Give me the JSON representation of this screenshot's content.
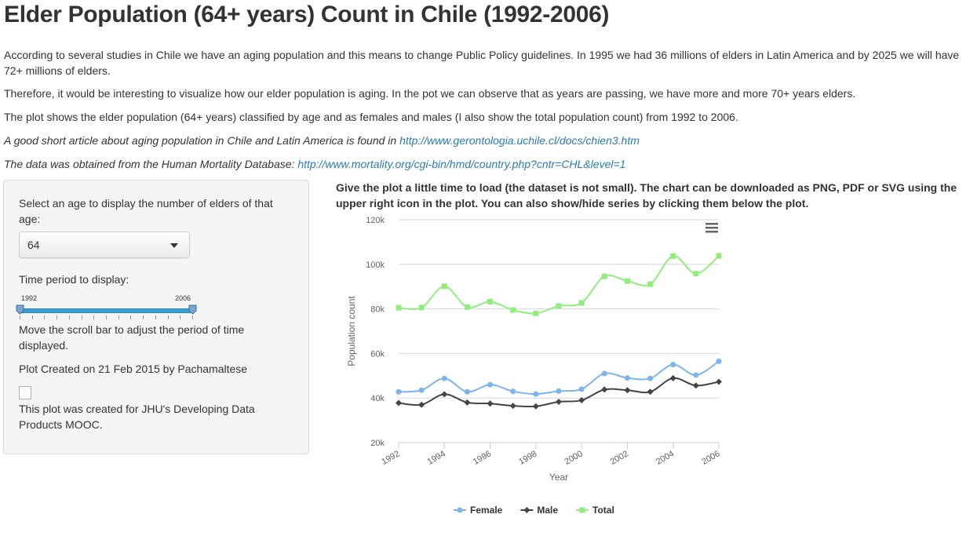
{
  "page": {
    "title": "Elder Population (64+ years) Count in Chile (1992-2006)",
    "paragraphs": {
      "p1": "According to several studies in Chile we have an aging population and this means to change Public Policy guidelines. In 1995 we had 36 millions of elders in Latin America and by 2025 we will have 72+ millions of elders.",
      "p2": "Therefore, it would be interesting to visualize how our elder population is aging. In the pot we can observe that as years are passing, we have more and more 70+ years elders.",
      "p3": "The plot shows the elder population (64+ years) classified by age and as females and males (I also show the total population count) from 1992 to 2006.",
      "p4_text": "A good short article about aging population in Chile and Latin America is found in ",
      "p4_link": "http://www.gerontologia.uchile.cl/docs/chien3.htm",
      "p5_text": "The data was obtained from the Human Mortality Database: ",
      "p5_link": "http://www.mortality.org/cgi-bin/hmd/country.php?cntr=CHL&level=1"
    }
  },
  "sidebar": {
    "age_label": "Select an age to display the number of elders of that age:",
    "age_selected": "64",
    "period_label": "Time period to display:",
    "slider": {
      "min_label": "1992",
      "max_label": "2006",
      "min": 1992,
      "max": 2006,
      "from": 1992,
      "to": 2006
    },
    "scroll_hint": "Move the scroll bar to adjust the period of time displayed.",
    "created": "Plot Created on 21 Feb 2015 by Pachamaltese",
    "jhu": "This plot was created for JHU's Developing Data Products MOOC."
  },
  "chart_note": "Give the plot a little time to load (the dataset is not small). The chart can be downloaded as PNG, PDF or SVG using the upper right icon in the plot. You can also show/hide series by clicking them below the plot.",
  "chart_data": {
    "type": "line",
    "xlabel": "Year",
    "ylabel": "Population count",
    "x": [
      1992,
      1993,
      1994,
      1995,
      1996,
      1997,
      1998,
      1999,
      2000,
      2001,
      2002,
      2003,
      2004,
      2005,
      2006
    ],
    "x_tick_labels": [
      "1992",
      "1994",
      "1996",
      "1998",
      "2000",
      "2002",
      "2004",
      "2006"
    ],
    "x_tick_values": [
      1992,
      1994,
      1996,
      1998,
      2000,
      2002,
      2004,
      2006
    ],
    "y_tick_labels": [
      "20k",
      "40k",
      "60k",
      "80k",
      "100k",
      "120k"
    ],
    "y_tick_values": [
      20000,
      40000,
      60000,
      80000,
      100000,
      120000
    ],
    "ylim": [
      20000,
      120000
    ],
    "grid": true,
    "legend_position": "bottom",
    "series": [
      {
        "name": "Female",
        "color": "#7cb5ec",
        "marker": "circle",
        "values": [
          42800,
          43500,
          48800,
          42800,
          46000,
          43000,
          41800,
          43100,
          44000,
          51000,
          49000,
          48800,
          55000,
          50300,
          56500
        ]
      },
      {
        "name": "Male",
        "color": "#434348",
        "marker": "diamond",
        "values": [
          37800,
          37000,
          41700,
          38000,
          37500,
          36500,
          36300,
          38300,
          39000,
          43800,
          43500,
          42800,
          48900,
          45600,
          47300
        ]
      },
      {
        "name": "Total",
        "color": "#90ed7d",
        "marker": "square",
        "values": [
          80500,
          80600,
          90100,
          80800,
          83200,
          79500,
          78000,
          81300,
          82700,
          94600,
          92500,
          91100,
          103700,
          95800,
          103800
        ]
      }
    ]
  }
}
